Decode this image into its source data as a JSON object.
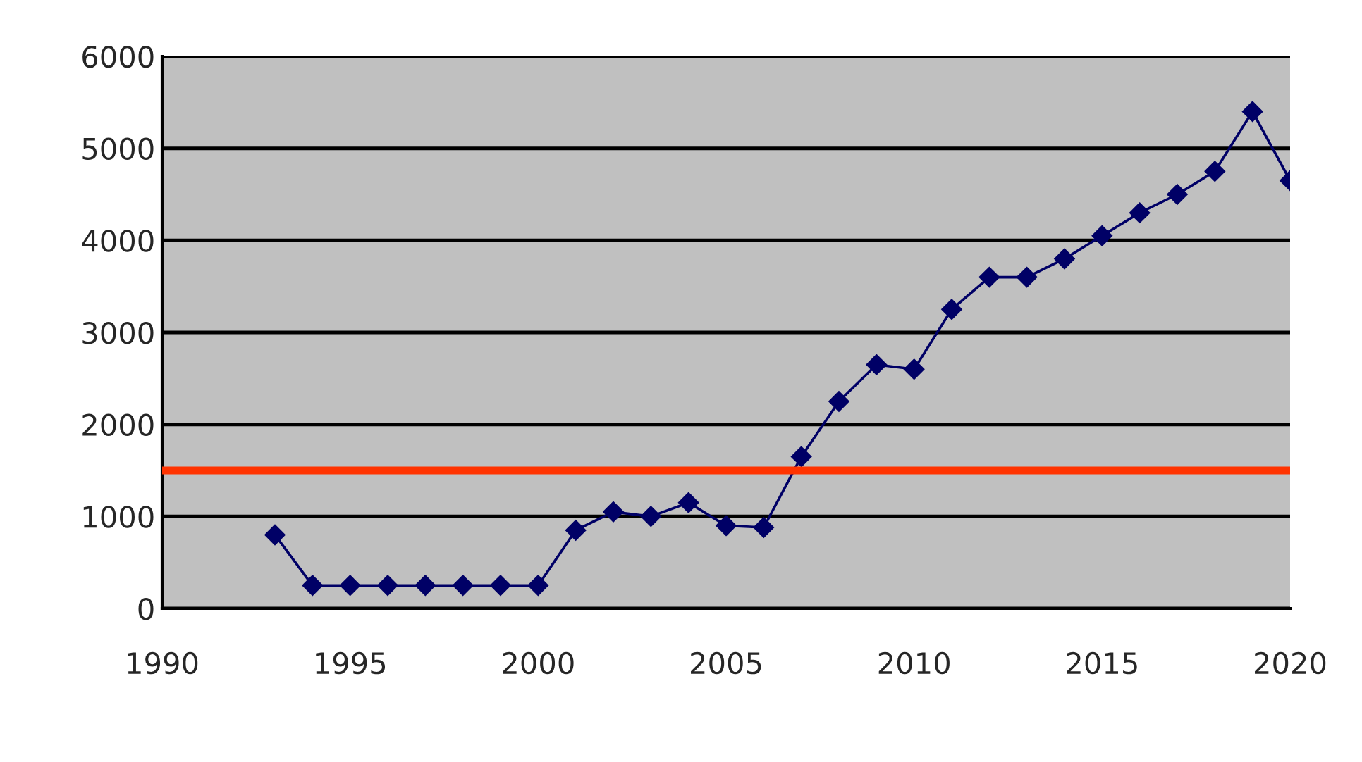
{
  "chart_data": {
    "type": "line",
    "x": [
      1993,
      1994,
      1995,
      1996,
      1997,
      1998,
      1999,
      2000,
      2001,
      2002,
      2003,
      2004,
      2005,
      2006,
      2007,
      2008,
      2009,
      2010,
      2011,
      2012,
      2013,
      2014,
      2015,
      2016,
      2017,
      2018,
      2019,
      2020
    ],
    "series": [
      {
        "color": "#000066",
        "values": [
          800,
          250,
          250,
          250,
          250,
          250,
          250,
          250,
          850,
          1050,
          1000,
          1150,
          900,
          880,
          1650,
          2250,
          2650,
          2600,
          3250,
          3600,
          3600,
          3800,
          4050,
          4300,
          4500,
          4750,
          5400,
          4650
        ]
      }
    ],
    "xlim": [
      1990,
      2020
    ],
    "xticks": [
      1990,
      1995,
      2000,
      2005,
      2010,
      2015,
      2020
    ],
    "ylim": [
      0,
      6000
    ],
    "yticks": [
      0,
      1000,
      2000,
      3000,
      4000,
      5000,
      6000
    ],
    "grid": "y",
    "marker": "diamond",
    "line_style": "solid",
    "legend": false,
    "ref_lines": [
      {
        "axis": "y",
        "value": 1500,
        "color": "#ff3300"
      }
    ]
  }
}
